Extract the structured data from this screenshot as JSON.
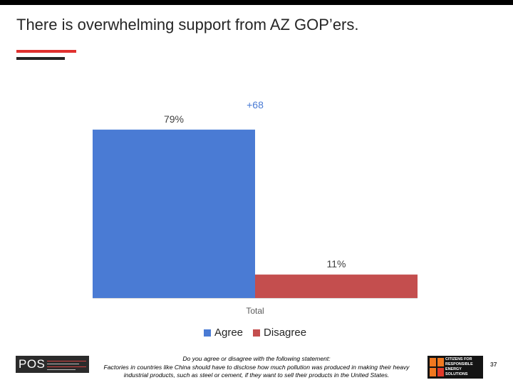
{
  "title": "There is overwhelming support from AZ GOP’ers.",
  "colors": {
    "accent_red": "#e0312f",
    "accent_dark": "#262626",
    "agree": "#4a7bd4",
    "disagree": "#c44e4e",
    "margin_label": "#4a7bd4"
  },
  "chart_data": {
    "type": "bar",
    "categories": [
      "Total"
    ],
    "series": [
      {
        "name": "Agree",
        "values": [
          79
        ],
        "value_labels": [
          "79%"
        ],
        "color": "#4a7bd4"
      },
      {
        "name": "Disagree",
        "values": [
          11
        ],
        "value_labels": [
          "11%"
        ],
        "color": "#c44e4e"
      }
    ],
    "annotation": "+68",
    "ylim": [
      0,
      100
    ],
    "grid": false,
    "legend_position": "bottom"
  },
  "footnote": {
    "question": "Do you agree or disagree with the following statement:",
    "statement": "Factories in countries like China should have to disclose how much pollution was produced in making their heavy industrial products, such as steel or cement, if they want to sell their products in the United States."
  },
  "logos": {
    "pos_text": "POS",
    "cres_lines": [
      "CITIZENS FOR",
      "RESPONSIBLE",
      "ENERGY SOLUTIONS"
    ]
  },
  "page_number": "37"
}
